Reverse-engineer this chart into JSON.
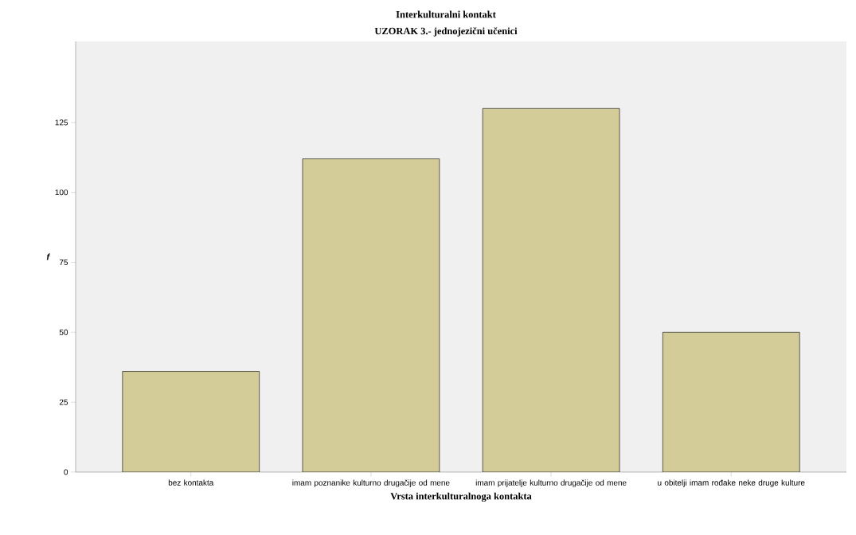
{
  "chart_data": {
    "type": "bar",
    "title": "Interkulturalni kontakt",
    "subtitle": "UZORAK 3.- jednojezični učenici",
    "xlabel": "Vrsta interkulturalnoga kontakta",
    "ylabel": "f",
    "categories": [
      "bez kontakta",
      "imam poznanike kulturno drugačije od mene",
      "imam prijatelje kulturno drugačije od mene",
      "u obitelji imam rođake neke druge kulture"
    ],
    "values": [
      36,
      112,
      130,
      50
    ],
    "color": "#d3cc98",
    "ylim": [
      0,
      154
    ],
    "yticks": [
      0,
      25,
      50,
      75,
      100,
      125
    ],
    "grid": false
  }
}
